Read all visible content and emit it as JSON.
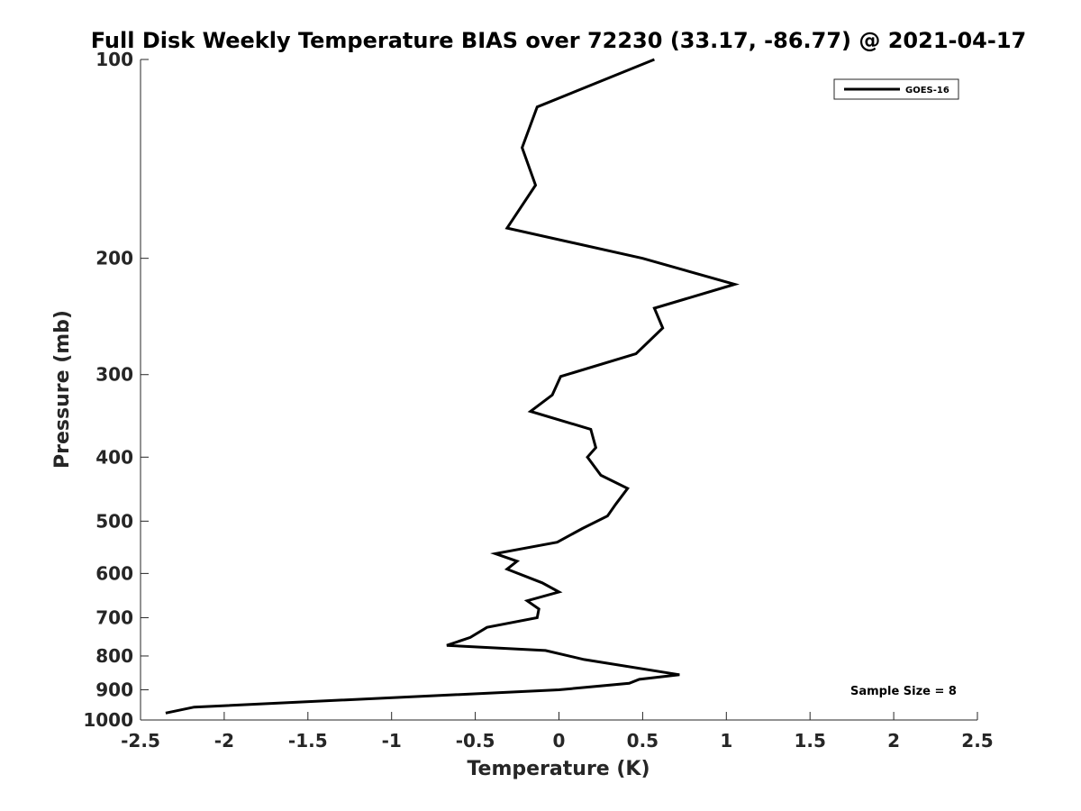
{
  "chart_data": {
    "type": "line",
    "title": "Full Disk Weekly Temperature BIAS over 72230 (33.17, -86.77) @ 2021-04-17",
    "xlabel": "Temperature (K)",
    "ylabel": "Pressure (mb)",
    "xlim": [
      -2.5,
      2.5
    ],
    "ylim": [
      100,
      1000
    ],
    "y_scale": "log",
    "y_reversed": true,
    "x_ticks": [
      -2.5,
      -2,
      -1.5,
      -1,
      -0.5,
      0,
      0.5,
      1,
      1.5,
      2,
      2.5
    ],
    "x_tick_labels": [
      "-2.5",
      "-2",
      "-1.5",
      "-1",
      "-0.5",
      "0",
      "0.5",
      "1",
      "1.5",
      "2",
      "2.5"
    ],
    "y_ticks": [
      100,
      200,
      300,
      400,
      500,
      600,
      700,
      800,
      900,
      1000
    ],
    "y_tick_labels": [
      "100",
      "200",
      "300",
      "400",
      "500",
      "600",
      "700",
      "800",
      "900",
      "1000"
    ],
    "grid": false,
    "legend": {
      "location": "top-right",
      "entries": [
        "GOES-16"
      ]
    },
    "annotation": "Sample Size = 8",
    "line_color": "#000000",
    "series": [
      {
        "name": "GOES-16",
        "x": [
          0.57,
          -0.13,
          -0.22,
          -0.14,
          -0.31,
          0.5,
          1.05,
          0.57,
          0.62,
          0.46,
          0.01,
          -0.04,
          -0.17,
          0.19,
          0.22,
          0.17,
          0.25,
          0.41,
          0.34,
          0.29,
          0.14,
          -0.01,
          -0.38,
          -0.25,
          -0.31,
          -0.1,
          0.0,
          -0.19,
          -0.12,
          -0.13,
          -0.43,
          -0.53,
          -0.67,
          -0.08,
          0.15,
          0.72,
          0.48,
          0.42,
          0.0,
          -2.18,
          -2.35
        ],
        "y": [
          100,
          118,
          136,
          155,
          180,
          200,
          219,
          238,
          255,
          279,
          302,
          322,
          341,
          363,
          387,
          400,
          426,
          446,
          471,
          491,
          513,
          538,
          560,
          575,
          591,
          620,
          640,
          660,
          679,
          700,
          724,
          750,
          771,
          785,
          810,
          854,
          868,
          880,
          900,
          956,
          976
        ]
      }
    ]
  }
}
